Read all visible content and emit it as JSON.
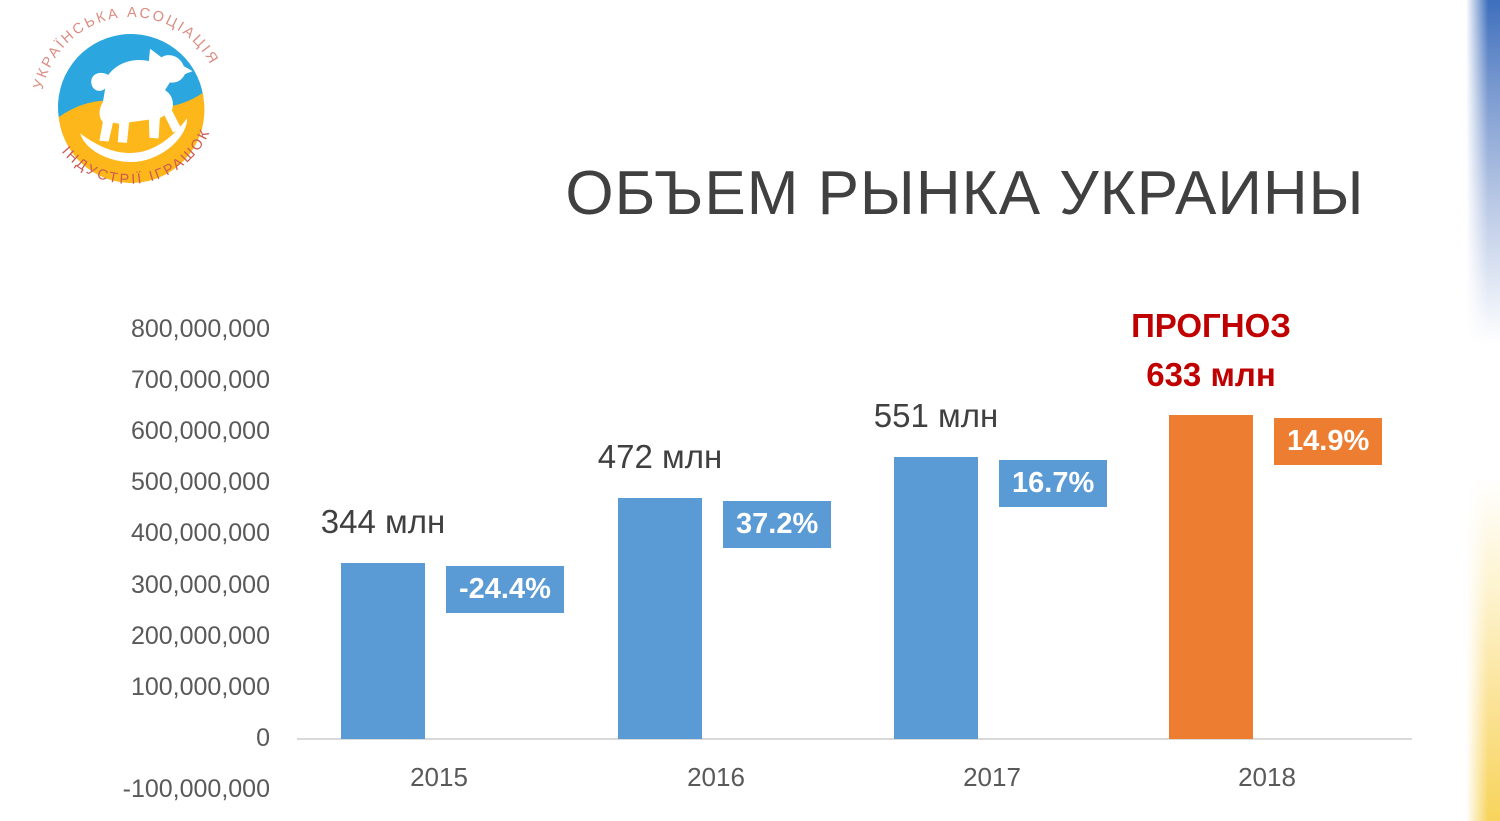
{
  "logo": {
    "top_text": "УКРАЇНСЬКА АСОЦІАЦІЯ",
    "bottom_text": "ІНДУСТРІЇ ІГРАШОК"
  },
  "title": "ОБЪЕМ РЫНКА УКРАИНЫ",
  "chart_data": {
    "type": "bar",
    "title": "ОБЪЕМ РЫНКА УКРАИНЫ",
    "categories": [
      "2015",
      "2016",
      "2017",
      "2018"
    ],
    "values": [
      344000000,
      472000000,
      551000000,
      633000000
    ],
    "value_labels": [
      "344 млн",
      "472 млн",
      "551 млн",
      "633 млн"
    ],
    "pct_labels": [
      "-24.4%",
      "37.2%",
      "16.7%",
      "14.9%"
    ],
    "forecast_label": "ПРОГНОЗ",
    "forecast_value_label": "633 млн",
    "bar_colors": [
      "#5B9BD5",
      "#5B9BD5",
      "#5B9BD5",
      "#ED7D31"
    ],
    "ytick_labels": [
      "800,000,000",
      "700,000,000",
      "600,000,000",
      "500,000,000",
      "400,000,000",
      "300,000,000",
      "200,000,000",
      "100,000,000",
      "0",
      "-100,000,000"
    ],
    "ylim": [
      -100000000,
      800000000
    ],
    "xlabel": "",
    "ylabel": "",
    "grid": false,
    "legend": "none",
    "colors": {
      "bar_blue": "#5B9BD5",
      "bar_orange": "#ED7D31",
      "forecast_red": "#C00000",
      "axis_line": "#D9D9D9",
      "tick_text": "#595959",
      "title_text": "#404040",
      "logo_blue": "#2BA6DF",
      "logo_yellow": "#FDB71A"
    }
  }
}
